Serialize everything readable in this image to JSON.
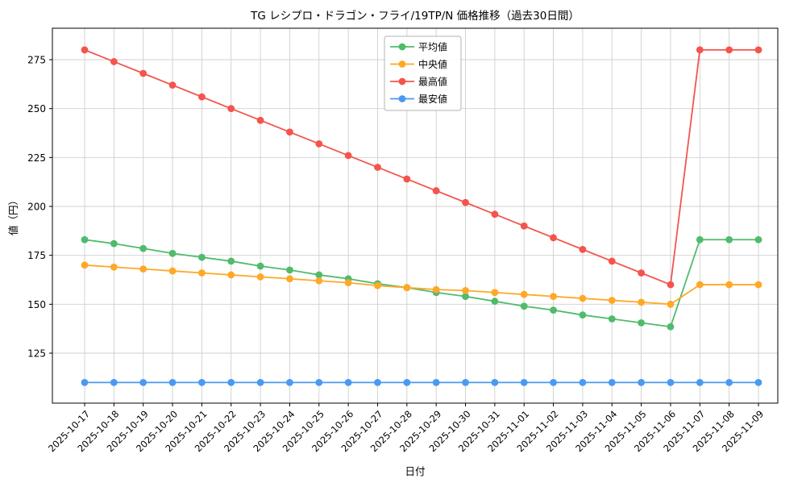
{
  "figure": {
    "background": "#ffffff",
    "plot_border_color": "#000000",
    "grid_color": "#cfcfcf",
    "legend_border_color": "#b3b3b3"
  },
  "chart_data": {
    "type": "line",
    "title": "TG レシプロ・ドラゴン・フライ/19TP/N 価格推移（過去30日間）",
    "xlabel": "日付",
    "ylabel": "値（円）",
    "grid": true,
    "legend_position": "upper-center",
    "ylim": [
      100,
      290
    ],
    "yticks": [
      125,
      150,
      175,
      200,
      225,
      250,
      275
    ],
    "categories": [
      "2025-10-17",
      "2025-10-18",
      "2025-10-19",
      "2025-10-20",
      "2025-10-21",
      "2025-10-22",
      "2025-10-23",
      "2025-10-24",
      "2025-10-25",
      "2025-10-26",
      "2025-10-27",
      "2025-10-28",
      "2025-10-29",
      "2025-10-30",
      "2025-10-31",
      "2025-11-01",
      "2025-11-02",
      "2025-11-03",
      "2025-11-04",
      "2025-11-05",
      "2025-11-06",
      "2025-11-07",
      "2025-11-08",
      "2025-11-09"
    ],
    "series": [
      {
        "name": "平均値",
        "color": "#4FBB6B",
        "values": [
          183,
          181,
          178.5,
          176,
          174,
          172,
          169.5,
          167.5,
          165,
          163,
          160.5,
          158.5,
          156,
          154,
          151.5,
          149,
          147,
          144.5,
          142.5,
          140.5,
          138.5,
          183,
          183,
          183
        ]
      },
      {
        "name": "中央値",
        "color": "#FFA827",
        "values": [
          170,
          169,
          168,
          167,
          166,
          165,
          164,
          163,
          162,
          161,
          159.5,
          158.5,
          157.5,
          157,
          156,
          155,
          154,
          153,
          152,
          151,
          150,
          160,
          160,
          160
        ]
      },
      {
        "name": "最高値",
        "color": "#F4544D",
        "values": [
          280,
          274,
          268,
          262,
          256,
          250,
          244,
          238,
          232,
          226,
          220,
          214,
          208,
          202,
          196,
          190,
          184,
          178,
          172,
          166,
          160,
          280,
          280,
          280
        ]
      },
      {
        "name": "最安値",
        "color": "#4A9AF0",
        "values": [
          110,
          110,
          110,
          110,
          110,
          110,
          110,
          110,
          110,
          110,
          110,
          110,
          110,
          110,
          110,
          110,
          110,
          110,
          110,
          110,
          110,
          110,
          110,
          110
        ]
      }
    ]
  }
}
